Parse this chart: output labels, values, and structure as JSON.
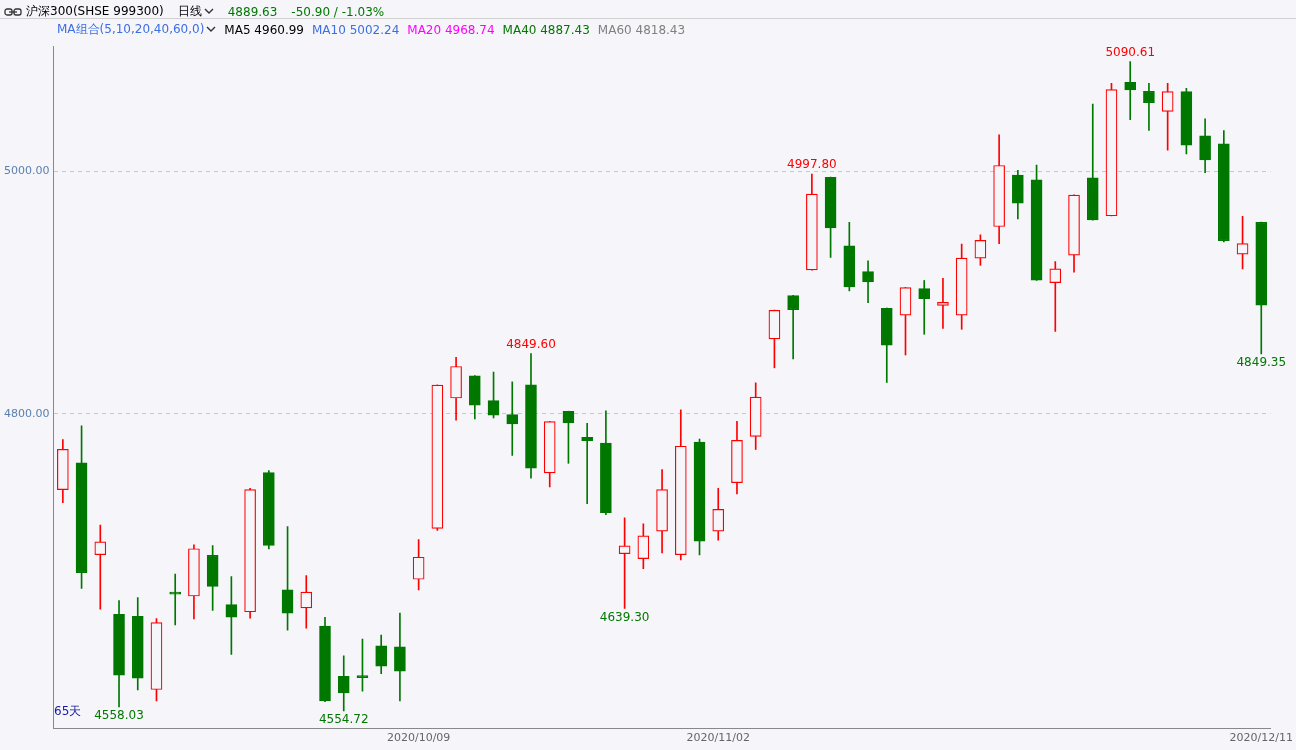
{
  "chart_data": {
    "type": "candlestick",
    "title": "沪深300(SHSE 999300)",
    "subtitle": "日线",
    "categories": [
      null,
      null,
      null,
      null,
      null,
      null,
      null,
      null,
      null,
      null,
      null,
      null,
      null,
      null,
      null,
      null,
      null,
      null,
      null,
      "2020/10/09",
      null,
      null,
      null,
      null,
      null,
      null,
      null,
      null,
      null,
      null,
      null,
      null,
      null,
      null,
      null,
      "2020/11/02",
      null,
      null,
      null,
      null,
      null,
      null,
      null,
      null,
      null,
      null,
      null,
      null,
      null,
      null,
      null,
      null,
      null,
      null,
      null,
      null,
      null,
      null,
      null,
      null,
      null,
      null,
      null,
      null,
      "2020/12/11"
    ],
    "ohlc": [
      [
        4737.4,
        4778.6,
        4726.6,
        4770.7
      ],
      [
        4759.6,
        4790.0,
        4655.8,
        4668.8
      ],
      [
        4683.7,
        4708.1,
        4638.8,
        4694.3
      ],
      [
        4634.4,
        4645.8,
        4558.03,
        4584.3
      ],
      [
        4632.8,
        4648.2,
        4572.1,
        4581.8
      ],
      [
        4572.4,
        4630.9,
        4563.1,
        4627.6
      ],
      [
        4652.5,
        4667.7,
        4625.7,
        4651.2
      ],
      [
        4649.6,
        4691.9,
        4630.6,
        4688.6
      ],
      [
        4683.2,
        4691.3,
        4637.7,
        4657.4
      ],
      [
        4642.5,
        4665.6,
        4601.4,
        4632.2
      ],
      [
        4636.6,
        4738.5,
        4631.4,
        4737.4
      ],
      [
        4751.5,
        4753.1,
        4688.4,
        4691.3
      ],
      [
        4654.7,
        4706.8,
        4621.4,
        4635.5
      ],
      [
        4639.8,
        4666.4,
        4623.0,
        4652.8
      ],
      [
        4624.7,
        4632.0,
        4562.3,
        4563.1
      ],
      [
        4583.2,
        4600.3,
        4554.72,
        4569.6
      ],
      [
        4583.3,
        4614.1,
        4571.0,
        4582.2
      ],
      [
        4608.4,
        4617.3,
        4585.6,
        4591.6
      ],
      [
        4607.6,
        4635.5,
        4563.1,
        4587.5
      ],
      [
        4663.4,
        4696.2,
        4654.7,
        4681.6
      ],
      [
        4705.4,
        4823.8,
        4703.8,
        4823.6
      ],
      [
        4813.0,
        4846.6,
        4794.8,
        4839.0
      ],
      [
        4831.2,
        4831.5,
        4795.7,
        4807.0
      ],
      [
        4810.8,
        4834.4,
        4796.5,
        4798.9
      ],
      [
        4799.4,
        4826.3,
        4765.6,
        4791.6
      ],
      [
        4823.8,
        4849.6,
        4746.9,
        4755.0
      ],
      [
        4751.2,
        4793.7,
        4739.6,
        4793.5
      ],
      [
        4801.9,
        4802.1,
        4759.1,
        4792.4
      ],
      [
        4780.5,
        4792.1,
        4725.7,
        4777.8
      ],
      [
        4775.9,
        4802.4,
        4716.8,
        4718.4
      ],
      [
        4684.5,
        4714.1,
        4639.3,
        4691.0
      ],
      [
        4680.5,
        4709.2,
        4672.1,
        4699.2
      ],
      [
        4703.2,
        4753.9,
        4685.1,
        4737.4
      ],
      [
        4683.7,
        4803.2,
        4679.4,
        4773.2
      ],
      [
        4776.7,
        4779.1,
        4683.5,
        4694.8
      ],
      [
        4703.2,
        4738.5,
        4695.7,
        4721.1
      ],
      [
        4743.1,
        4793.8,
        4733.9,
        4778.0
      ],
      [
        4781.3,
        4825.5,
        4770.5,
        4813.8
      ],
      [
        4861.8,
        4885.6,
        4837.9,
        4885.4
      ],
      [
        4897.6,
        4897.8,
        4845.3,
        4885.9
      ],
      [
        4918.7,
        4997.8,
        4918.5,
        4981.3
      ],
      [
        4995.2,
        4995.4,
        4929.0,
        4953.4
      ],
      [
        4938.5,
        4958.0,
        4901.4,
        4904.6
      ],
      [
        4917.4,
        4926.3,
        4891.6,
        4908.7
      ],
      [
        4887.1,
        4887.3,
        4825.8,
        4856.7
      ],
      [
        4881.3,
        4904.3,
        4848.5,
        4904.1
      ],
      [
        4903.3,
        4910.0,
        4865.6,
        4894.9
      ],
      [
        4889.4,
        4911.7,
        4870.5,
        4891.9
      ],
      [
        4881.3,
        4940.1,
        4869.7,
        4928.5
      ],
      [
        4928.5,
        4947.7,
        4922.5,
        4943.1
      ],
      [
        4954.5,
        5030.2,
        4940.4,
        5004.9
      ],
      [
        4997.0,
        5000.8,
        4960.7,
        4973.7
      ],
      [
        4993.0,
        5005.2,
        4910.1,
        4910.3
      ],
      [
        4908.2,
        4925.5,
        4868.0,
        4919.5
      ],
      [
        4930.9,
        4980.7,
        4916.8,
        4980.5
      ],
      [
        4994.6,
        5055.6,
        4959.7,
        4959.9
      ],
      [
        4963.4,
        5072.6,
        4963.2,
        5067.5
      ],
      [
        5073.5,
        5090.61,
        5042.8,
        5067.2
      ],
      [
        5066.1,
        5072.6,
        5033.9,
        5056.7
      ],
      [
        5049.6,
        5072.6,
        5017.6,
        5065.9
      ],
      [
        5065.9,
        5068.6,
        5014.4,
        5021.7
      ],
      [
        5029.3,
        5043.4,
        4999.0,
        5009.5
      ],
      [
        5022.8,
        5033.6,
        4941.8,
        4942.8
      ],
      [
        4931.7,
        4962.9,
        4919.5,
        4940.5
      ],
      [
        4958.0,
        4958.2,
        4849.35,
        4889.63
      ]
    ],
    "colors": [
      "#ff0000",
      "#007800",
      "#ff0000",
      "#007800",
      "#007800",
      "#ff0000",
      "#007800",
      "#ff0000",
      "#007800",
      "#007800",
      "#ff0000",
      "#007800",
      "#007800",
      "#ff0000",
      "#007800",
      "#007800",
      "#007800",
      "#007800",
      "#007800",
      "#ff0000",
      "#ff0000",
      "#ff0000",
      "#007800",
      "#007800",
      "#007800",
      "#007800",
      "#ff0000",
      "#007800",
      "#007800",
      "#007800",
      "#ff0000",
      "#ff0000",
      "#ff0000",
      "#ff0000",
      "#007800",
      "#ff0000",
      "#ff0000",
      "#ff0000",
      "#ff0000",
      "#007800",
      "#ff0000",
      "#007800",
      "#007800",
      "#007800",
      "#007800",
      "#ff0000",
      "#007800",
      "#ff0000",
      "#ff0000",
      "#ff0000",
      "#ff0000",
      "#007800",
      "#007800",
      "#ff0000",
      "#ff0000",
      "#007800",
      "#ff0000",
      "#007800",
      "#007800",
      "#ff0000",
      "#007800",
      "#007800",
      "#007800",
      "#ff0000",
      "#007800"
    ],
    "ylim": [
      4540,
      5103
    ],
    "yticks": [
      {
        "value": 4800,
        "label": "4800.00"
      },
      {
        "value": 5000,
        "label": "5000.00"
      }
    ],
    "grid": "y",
    "annotations": [
      "4889.63",
      "-50.90 / -1.03%",
      "MA组合(5,10,20,40,60,0)",
      "MA5 4960.99",
      "MA10 5002.24",
      "MA20 4968.74",
      "MA40 4887.43",
      "MA60 4818.43",
      "65天",
      {
        "text": "4558.03",
        "y": 4558.03
      },
      {
        "text": "4554.72",
        "y": 4554.72
      },
      {
        "text": "4849.60",
        "y": 4849.6
      },
      {
        "text": "4639.30",
        "y": 4639.3
      },
      {
        "text": "4997.80",
        "y": 4997.8
      },
      {
        "text": "5090.61",
        "y": 5090.61
      },
      {
        "text": "4849.35",
        "y": 4849.35
      }
    ]
  }
}
